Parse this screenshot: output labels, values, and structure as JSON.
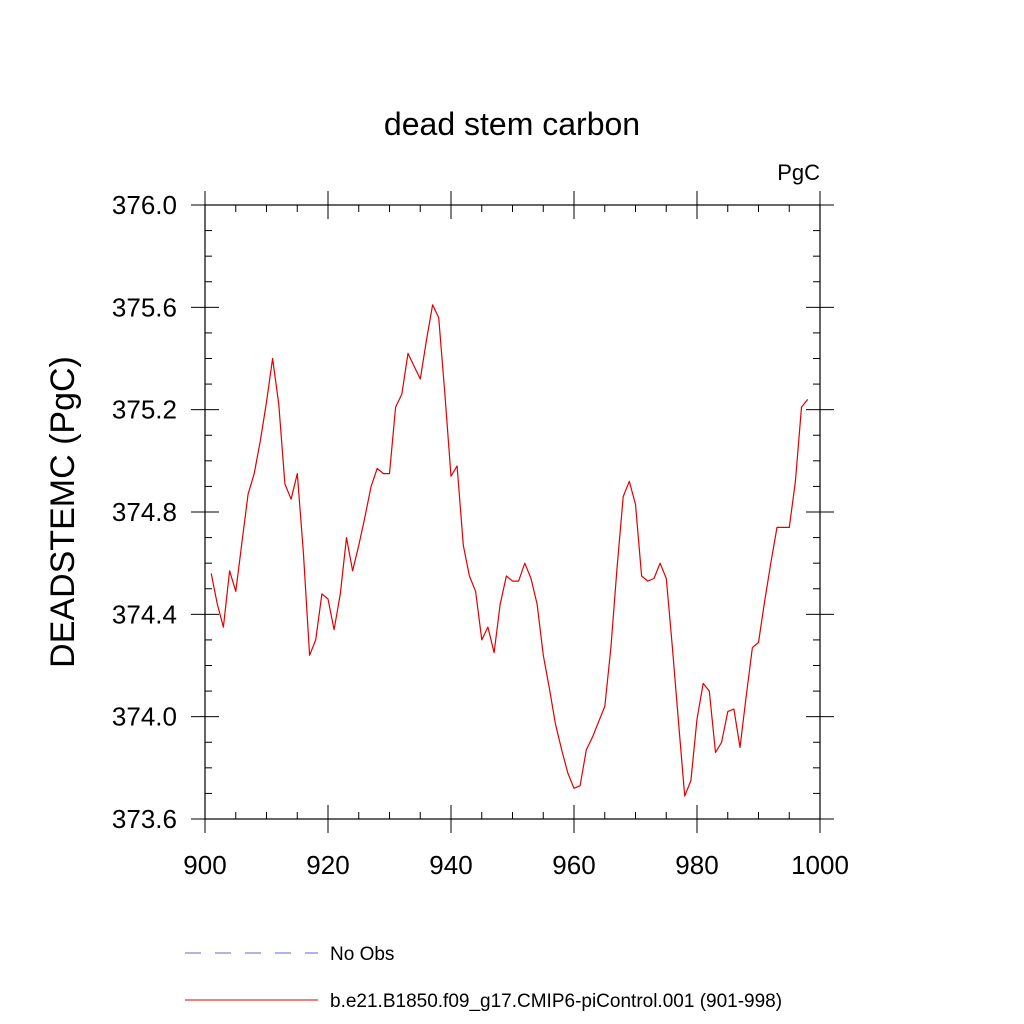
{
  "chart_data": {
    "type": "line",
    "title": "dead stem carbon",
    "units_label": "PgC",
    "ylabel": "DEADSTEMC  (PgC)",
    "xlabel": "",
    "xlim": [
      900,
      1000
    ],
    "ylim": [
      373.6,
      376.0
    ],
    "x_ticks": [
      900,
      920,
      940,
      960,
      980,
      1000
    ],
    "x_tick_labels": [
      "900",
      "920",
      "940",
      "960",
      "980",
      "1000"
    ],
    "y_ticks": [
      373.6,
      374.0,
      374.4,
      374.8,
      375.2,
      375.6,
      376.0
    ],
    "y_tick_labels": [
      "373.6",
      "374.0",
      "374.4",
      "374.8",
      "375.2",
      "375.6",
      "376.0"
    ],
    "grid": false,
    "legend_position": "bottom",
    "legend": [
      {
        "name": "No Obs",
        "color": "#6666cc",
        "style": "dashed"
      },
      {
        "name": "b.e21.B1850.f09_g17.CMIP6-piControl.001 (901-998)",
        "color": "#e00000",
        "style": "solid"
      }
    ],
    "series": [
      {
        "name": "b.e21.B1850.f09_g17.CMIP6-piControl.001 (901-998)",
        "color": "#e00000",
        "x": [
          901,
          902,
          903,
          904,
          905,
          906,
          907,
          908,
          909,
          910,
          911,
          912,
          913,
          914,
          915,
          916,
          917,
          918,
          919,
          920,
          921,
          922,
          923,
          924,
          925,
          926,
          927,
          928,
          929,
          930,
          931,
          932,
          933,
          934,
          935,
          936,
          937,
          938,
          939,
          940,
          941,
          942,
          943,
          944,
          945,
          946,
          947,
          948,
          949,
          950,
          951,
          952,
          953,
          954,
          955,
          956,
          957,
          958,
          959,
          960,
          961,
          962,
          963,
          964,
          965,
          966,
          967,
          968,
          969,
          970,
          971,
          972,
          973,
          974,
          975,
          976,
          977,
          978,
          979,
          980,
          981,
          982,
          983,
          984,
          985,
          986,
          987,
          988,
          989,
          990,
          991,
          992,
          993,
          994,
          995,
          996,
          997,
          998
        ],
        "y": [
          374.56,
          374.44,
          374.35,
          374.57,
          374.49,
          374.68,
          374.87,
          374.95,
          375.08,
          375.23,
          375.4,
          375.22,
          374.91,
          374.85,
          374.95,
          374.64,
          374.24,
          374.3,
          374.48,
          374.46,
          374.34,
          374.48,
          374.7,
          374.57,
          374.67,
          374.78,
          374.9,
          374.97,
          374.95,
          374.95,
          375.21,
          375.26,
          375.42,
          375.37,
          375.32,
          375.47,
          375.61,
          375.56,
          375.26,
          374.94,
          374.98,
          374.67,
          374.55,
          374.49,
          374.3,
          374.35,
          374.25,
          374.44,
          374.55,
          374.53,
          374.53,
          374.6,
          374.54,
          374.44,
          374.24,
          374.11,
          373.97,
          373.87,
          373.78,
          373.72,
          373.73,
          373.87,
          373.92,
          373.98,
          374.04,
          374.27,
          374.58,
          374.86,
          374.92,
          374.83,
          374.55,
          374.53,
          374.54,
          374.6,
          374.54,
          374.27,
          373.98,
          373.69,
          373.75,
          373.99,
          374.13,
          374.1,
          373.86,
          373.9,
          374.02,
          374.03,
          373.88,
          374.08,
          374.27,
          374.29,
          374.45,
          374.6,
          374.74,
          374.74,
          374.74,
          374.92,
          375.21,
          375.24
        ]
      }
    ]
  }
}
